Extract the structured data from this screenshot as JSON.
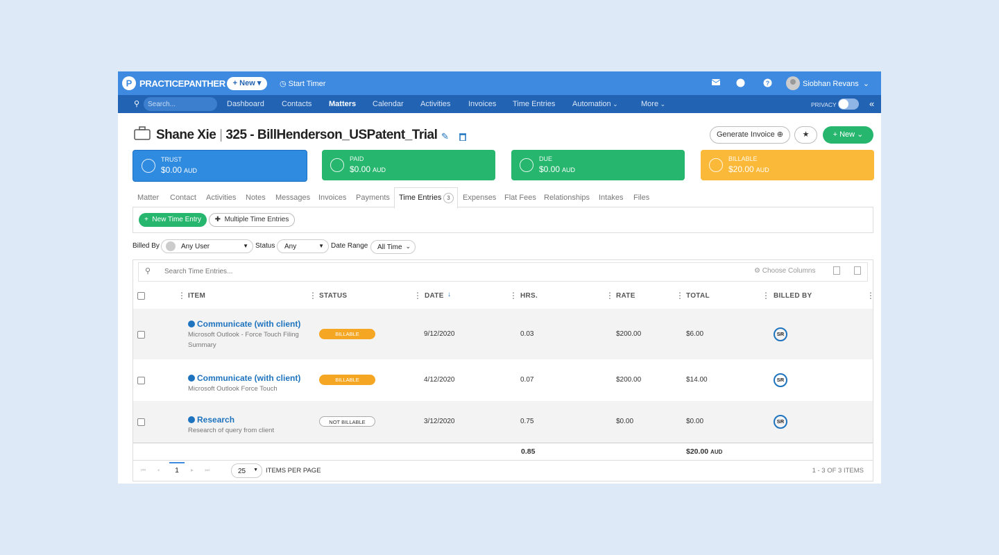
{
  "header": {
    "brand": "PRACTICEPANTHER",
    "new_button": "New",
    "start_timer": "Start Timer",
    "user": "Siobhan Revans"
  },
  "nav": {
    "search_placeholder": "Search...",
    "items": [
      "Dashboard",
      "Contacts",
      "Matters",
      "Calendar",
      "Activities",
      "Invoices",
      "Time Entries",
      "Automation",
      "More"
    ],
    "privacy": "PRIVACY"
  },
  "matter": {
    "client": "Shane Xie",
    "separator": "|",
    "name": "325 - BillHenderson_USPatent_Trial",
    "generate_invoice": "Generate Invoice",
    "new_button": "New"
  },
  "summary_cards": [
    {
      "label": "TRUST",
      "amount": "$0.00",
      "currency": "AUD"
    },
    {
      "label": "PAID",
      "amount": "$0.00",
      "currency": "AUD"
    },
    {
      "label": "DUE",
      "amount": "$0.00",
      "currency": "AUD"
    },
    {
      "label": "BILLABLE",
      "amount": "$20.00",
      "currency": "AUD"
    }
  ],
  "tabs": {
    "items": [
      "Matter",
      "Contact",
      "Activities",
      "Notes",
      "Messages",
      "Invoices",
      "Payments",
      "Time Entries",
      "Expenses",
      "Flat Fees",
      "Relationships",
      "Intakes",
      "Files"
    ],
    "time_entries_count": 3
  },
  "toolbar": {
    "new_time_entry": "New Time Entry",
    "multiple_time_entries": "Multiple Time Entries"
  },
  "filters": [
    {
      "label": "Billed By",
      "value": "Any User"
    },
    {
      "label": "Status",
      "value": "Any"
    },
    {
      "label": "Date Range",
      "value": "All Time"
    }
  ],
  "table": {
    "search_placeholder": "Search Time Entries...",
    "choose_columns": "Choose Columns",
    "columns": [
      "ITEM",
      "STATUS",
      "DATE",
      "HRS.",
      "RATE",
      "TOTAL",
      "BILLED BY"
    ],
    "rows": [
      {
        "item": "Communicate (with client)",
        "description": "Microsoft Outlook - Force Touch Filing Summary",
        "status": "BILLABLE",
        "date": "9/12/2020",
        "hours": 0.03,
        "rate": "$200.00",
        "total": "$6.00",
        "billed_by": "SR"
      },
      {
        "item": "Communicate (with client)",
        "description": "Microsoft Outlook Force Touch",
        "status": "BILLABLE",
        "date": "4/12/2020",
        "hours": 0.07,
        "rate": "$200.00",
        "total": "$14.00",
        "billed_by": "SR"
      },
      {
        "item": "Research",
        "description": "Research of query from client",
        "status": "NOT BILLABLE",
        "date": "3/12/2020",
        "hours": 0.75,
        "rate": "$0.00",
        "total": "$0.00",
        "billed_by": "SR"
      }
    ],
    "totals": {
      "hours": 0.85,
      "total": "$20.00",
      "currency": "AUD"
    }
  },
  "pagination": {
    "page": 1,
    "per_page": 25,
    "per_page_label": "ITEMS PER PAGE",
    "summary": "1 - 3 OF 3 ITEMS"
  }
}
